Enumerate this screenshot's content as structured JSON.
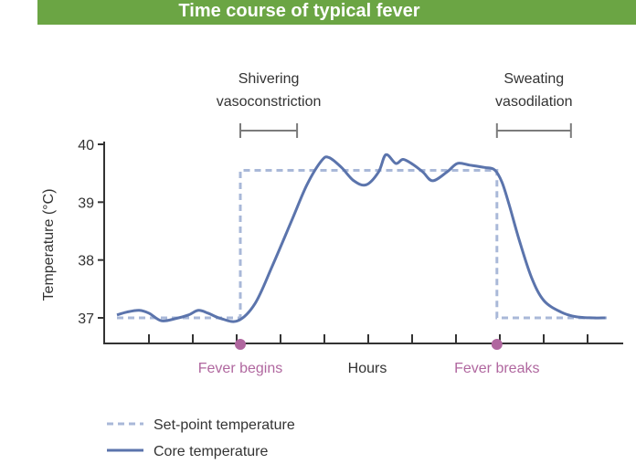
{
  "title": "Time course of typical fever",
  "colors": {
    "title_bg": "#6ba544",
    "core": "#5b74ac",
    "setpoint": "#a9b8d8",
    "marker": "#b0679f",
    "axis": "#333333",
    "bracket": "#7b7b7b"
  },
  "chart_data": {
    "type": "line",
    "xlabel": "Hours",
    "ylabel": "Temperature (°C)",
    "ylim": [
      37,
      40
    ],
    "yticks": [
      "37",
      "38",
      "39",
      "40"
    ],
    "x_tick_count": 12,
    "series": [
      {
        "name": "Set-point temperature",
        "style": "dashed",
        "points": [
          [
            0,
            37.0
          ],
          [
            5,
            37.0
          ],
          [
            5,
            39.55
          ],
          [
            15.4,
            39.55
          ],
          [
            15.4,
            37.0
          ],
          [
            20,
            37.0
          ]
        ]
      },
      {
        "name": "Core temperature",
        "style": "solid",
        "points": [
          [
            0,
            37.05
          ],
          [
            0.4,
            37.1
          ],
          [
            0.9,
            37.13
          ],
          [
            1.3,
            37.08
          ],
          [
            1.8,
            36.95
          ],
          [
            2.4,
            36.99
          ],
          [
            2.9,
            37.05
          ],
          [
            3.3,
            37.13
          ],
          [
            3.7,
            37.08
          ],
          [
            4.2,
            36.99
          ],
          [
            4.9,
            36.95
          ],
          [
            5.6,
            37.25
          ],
          [
            6.3,
            37.9
          ],
          [
            7.1,
            38.7
          ],
          [
            7.7,
            39.3
          ],
          [
            8.3,
            39.72
          ],
          [
            8.6,
            39.77
          ],
          [
            9.1,
            39.6
          ],
          [
            9.6,
            39.37
          ],
          [
            10.1,
            39.3
          ],
          [
            10.6,
            39.52
          ],
          [
            10.9,
            39.82
          ],
          [
            11.3,
            39.67
          ],
          [
            11.6,
            39.74
          ],
          [
            12.0,
            39.65
          ],
          [
            12.4,
            39.52
          ],
          [
            12.8,
            39.37
          ],
          [
            13.4,
            39.53
          ],
          [
            13.8,
            39.67
          ],
          [
            14.3,
            39.64
          ],
          [
            14.9,
            39.6
          ],
          [
            15.3,
            39.56
          ],
          [
            15.6,
            39.35
          ],
          [
            15.9,
            38.95
          ],
          [
            16.3,
            38.35
          ],
          [
            16.8,
            37.7
          ],
          [
            17.3,
            37.3
          ],
          [
            18.0,
            37.1
          ],
          [
            18.6,
            37.02
          ],
          [
            19.3,
            37.0
          ],
          [
            19.8,
            37.0
          ]
        ]
      }
    ],
    "markers": [
      {
        "label": "Fever begins",
        "x": 5
      },
      {
        "label": "Fever breaks",
        "x": 15.4
      }
    ],
    "brackets": [
      {
        "lines": [
          "Shivering",
          "vasoconstriction"
        ],
        "x_start": 5,
        "x_end": 7.3
      },
      {
        "lines": [
          "Sweating",
          "vasodilation"
        ],
        "x_start": 15.4,
        "x_end": 18.4
      }
    ],
    "legend": {
      "position": "bottom-left",
      "entries": [
        "Set-point temperature",
        "Core temperature"
      ]
    }
  }
}
